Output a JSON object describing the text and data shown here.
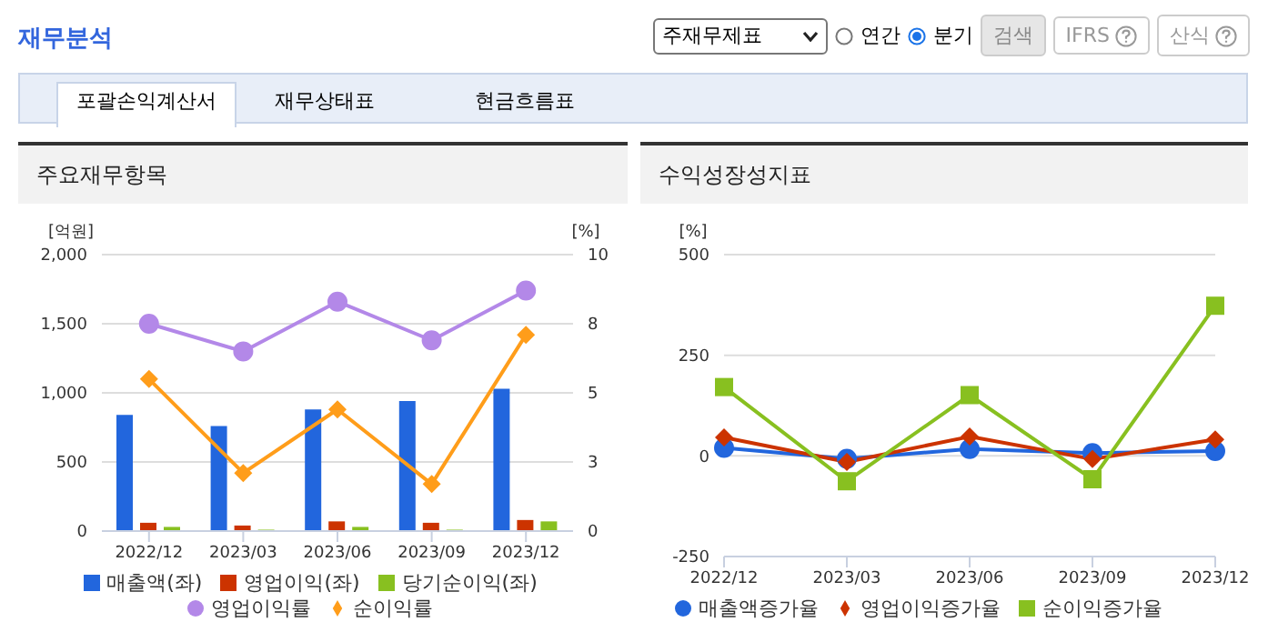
{
  "chart_data": [
    {
      "type": "bar",
      "title": "주요재무항목",
      "annotations": [
        "재무분석",
        "주재무제표",
        "연간",
        "분기",
        "검색",
        "IFRS",
        "산식",
        "포괄손익계산서",
        "재무상태표",
        "현금흐름표"
      ],
      "ylabel": "[억원]",
      "y2label": "[%]",
      "categories": [
        "2022/12",
        "2023/03",
        "2023/06",
        "2023/09",
        "2023/12"
      ],
      "series": [
        {
          "name": "매출액(좌)",
          "color": "#2266dd",
          "values": [
            840,
            760,
            880,
            940,
            1030
          ]
        },
        {
          "name": "영업이익(좌)",
          "color": "#cc3300",
          "values": [
            60,
            40,
            70,
            60,
            80
          ]
        },
        {
          "name": "당기순이익(좌)",
          "color": "#88c020",
          "values": [
            30,
            10,
            30,
            10,
            70
          ]
        },
        {
          "name": "영업이익률",
          "type": "line",
          "axis": "y2",
          "marker": "circle",
          "color": "#b388e8",
          "values": [
            7.5,
            6.5,
            8.3,
            6.9,
            8.7
          ]
        },
        {
          "name": "순이익률",
          "type": "line",
          "axis": "y2",
          "marker": "diamond",
          "color": "#ff9d1a",
          "values": [
            5.5,
            2.1,
            4.4,
            1.7,
            7.1
          ]
        }
      ],
      "ylim": [
        0,
        2000
      ],
      "yticks": [
        0,
        500,
        {
          "value": 1000,
          "label": "1,000"
        },
        {
          "value": 1500,
          "label": "1,500"
        },
        {
          "value": 2000,
          "label": "2,000"
        }
      ],
      "y2lim": [
        0,
        10
      ],
      "y2ticks": [
        0,
        {
          "value": 2.5,
          "label": "3"
        },
        5,
        {
          "value": 7.5,
          "label": "8"
        },
        10
      ],
      "grid": "y",
      "legend": "bottom"
    },
    {
      "type": "line",
      "title": "수익성장성지표",
      "ylabel": "[%]",
      "categories": [
        "2022/12",
        "2023/03",
        "2023/06",
        "2023/09",
        "2023/12"
      ],
      "series": [
        {
          "name": "매출액증가율",
          "color": "#2266dd",
          "marker": "circle",
          "values": [
            20,
            -7,
            17,
            7,
            12
          ]
        },
        {
          "name": "영업이익증가율",
          "color": "#cc3300",
          "marker": "diamond",
          "values": [
            46,
            -15,
            48,
            -8,
            41
          ]
        },
        {
          "name": "순이익증가율",
          "color": "#88c020",
          "marker": "square",
          "values": [
            171,
            -63,
            151,
            -58,
            373
          ]
        }
      ],
      "ylim": [
        -250,
        500
      ],
      "yticks": [
        -250,
        0,
        250,
        500
      ],
      "grid": "y",
      "legend": "bottom"
    }
  ]
}
